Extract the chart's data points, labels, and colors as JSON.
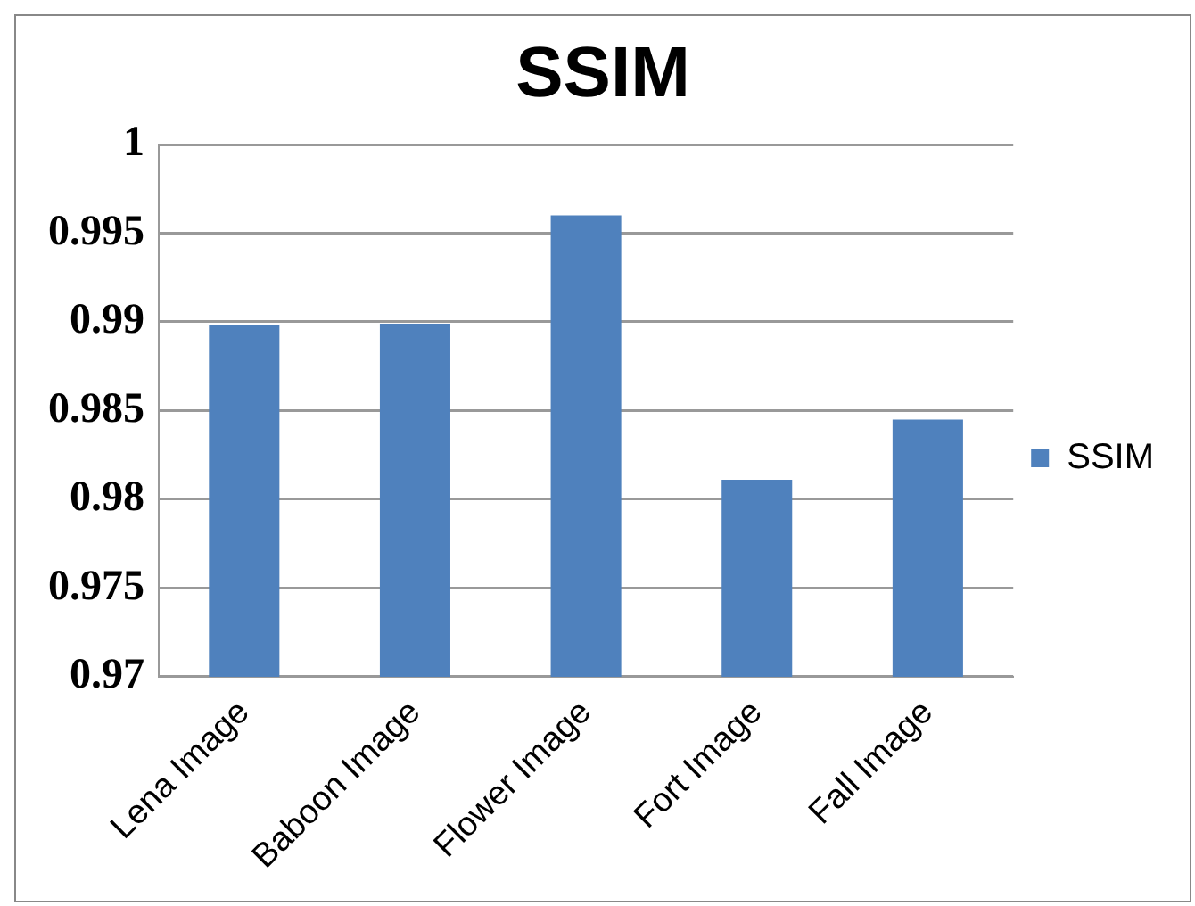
{
  "chart_data": {
    "type": "bar",
    "title": "SSIM",
    "categories": [
      "Lena Image",
      "Baboon Image",
      "Flower Image",
      "Fort Image",
      "Fall Image"
    ],
    "series": [
      {
        "name": "SSIM",
        "color": "#4f81bd",
        "values": [
          0.9898,
          0.9899,
          0.996,
          0.9811,
          0.9845
        ]
      }
    ],
    "ylim": [
      0.97,
      1
    ],
    "yticks": [
      0.97,
      0.975,
      0.98,
      0.985,
      0.99,
      0.995,
      1
    ],
    "grid": "y",
    "legend": "right"
  }
}
